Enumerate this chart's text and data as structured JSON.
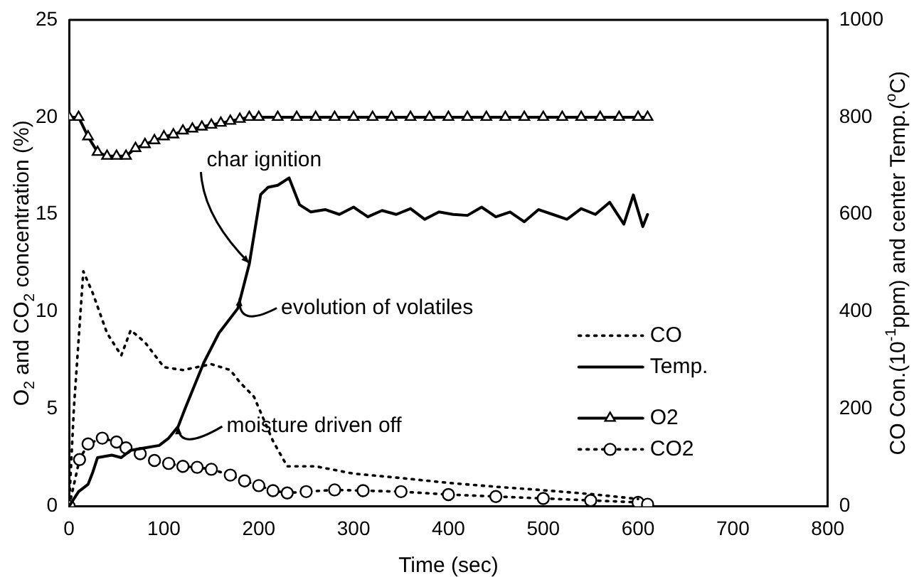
{
  "chart_data": {
    "type": "line",
    "xlabel": "Time (sec)",
    "ylabel": "O$_{2}$ and CO$_{2}$ concentration (%)",
    "y2label": "CO Con.(10$^{-1}$ppm) and center Temp.($^{o}$C)",
    "xlim": [
      0,
      800
    ],
    "xticks": [
      0,
      100,
      200,
      300,
      400,
      500,
      600,
      700,
      800
    ],
    "ylim": [
      0,
      25
    ],
    "yticks": [
      0,
      5,
      10,
      15,
      20,
      25
    ],
    "y2lim": [
      0,
      1000
    ],
    "y2ticks": [
      0,
      200,
      400,
      600,
      800,
      1000
    ],
    "grid": false,
    "legend": "bottom right",
    "series": [
      {
        "name": "CO",
        "color": "#000000",
        "axis": "y2",
        "line_style": "dotted",
        "marker": "none",
        "x": [
          0,
          5,
          15,
          25,
          40,
          55,
          65,
          80,
          100,
          120,
          150,
          170,
          180,
          195,
          215,
          230,
          260,
          300,
          350,
          400,
          450,
          500,
          550,
          600
        ],
        "values": [
          0,
          200,
          483,
          438,
          356,
          310,
          362,
          337,
          286,
          280,
          292,
          280,
          255,
          225,
          134,
          82,
          82,
          67,
          58,
          48,
          40,
          33,
          25,
          15
        ]
      },
      {
        "name": "Temp.",
        "color": "#000000",
        "axis": "y2",
        "line_style": "solid",
        "marker": "none",
        "x": [
          0,
          10,
          20,
          25,
          30,
          45,
          55,
          65,
          80,
          95,
          105,
          115,
          123,
          142,
          158,
          178,
          190,
          202,
          210,
          220,
          232,
          243,
          255,
          270,
          285,
          300,
          315,
          330,
          345,
          360,
          375,
          390,
          405,
          420,
          435,
          450,
          465,
          480,
          495,
          510,
          525,
          540,
          555,
          570,
          585,
          595,
          605,
          610
        ],
        "values": [
          0,
          30,
          45,
          70,
          100,
          105,
          100,
          115,
          120,
          125,
          140,
          164,
          204,
          295,
          356,
          407,
          498,
          641,
          656,
          660,
          675,
          620,
          605,
          610,
          600,
          615,
          595,
          608,
          600,
          612,
          590,
          605,
          600,
          598,
          615,
          595,
          605,
          585,
          610,
          600,
          590,
          612,
          600,
          625,
          580,
          640,
          575,
          600
        ]
      },
      {
        "name": "O2",
        "color": "#000000",
        "axis": "y",
        "line_style": "solid",
        "marker": "triangle",
        "x": [
          0,
          10,
          20,
          30,
          40,
          50,
          60,
          70,
          80,
          90,
          100,
          110,
          120,
          130,
          140,
          150,
          160,
          170,
          180,
          190,
          200,
          220,
          240,
          260,
          280,
          300,
          320,
          340,
          360,
          380,
          400,
          420,
          440,
          460,
          480,
          500,
          520,
          540,
          560,
          580,
          600,
          610
        ],
        "values": [
          20,
          20,
          19,
          18.2,
          18,
          18,
          18,
          18.4,
          18.6,
          18.8,
          19,
          19.1,
          19.3,
          19.4,
          19.5,
          19.6,
          19.7,
          19.8,
          19.9,
          20,
          20,
          20,
          20,
          20,
          20,
          20,
          20,
          20,
          20,
          20,
          20,
          20,
          20,
          20,
          20,
          20,
          20,
          20,
          20,
          20,
          20,
          20
        ]
      },
      {
        "name": "CO2",
        "color": "#000000",
        "axis": "y",
        "line_style": "dotted",
        "marker": "circle",
        "x": [
          0,
          11,
          20,
          35,
          50,
          60,
          75,
          90,
          105,
          120,
          135,
          150,
          170,
          185,
          200,
          215,
          230,
          250,
          280,
          310,
          350,
          400,
          450,
          500,
          550,
          600,
          610
        ],
        "values": [
          0,
          2.4,
          3.2,
          3.5,
          3.3,
          3.0,
          2.7,
          2.35,
          2.2,
          2.05,
          2.0,
          1.9,
          1.6,
          1.3,
          1.06,
          0.8,
          0.68,
          0.75,
          0.84,
          0.8,
          0.75,
          0.6,
          0.5,
          0.4,
          0.3,
          0.2,
          0.1
        ]
      }
    ],
    "annotations": [
      {
        "text": "char ignition",
        "x": 190,
        "y": 12.5
      },
      {
        "text": "evolution of volatiles",
        "x": 180,
        "y": 10.7
      },
      {
        "text": "moisture driven off",
        "x": 115,
        "y": 4.1
      }
    ]
  }
}
